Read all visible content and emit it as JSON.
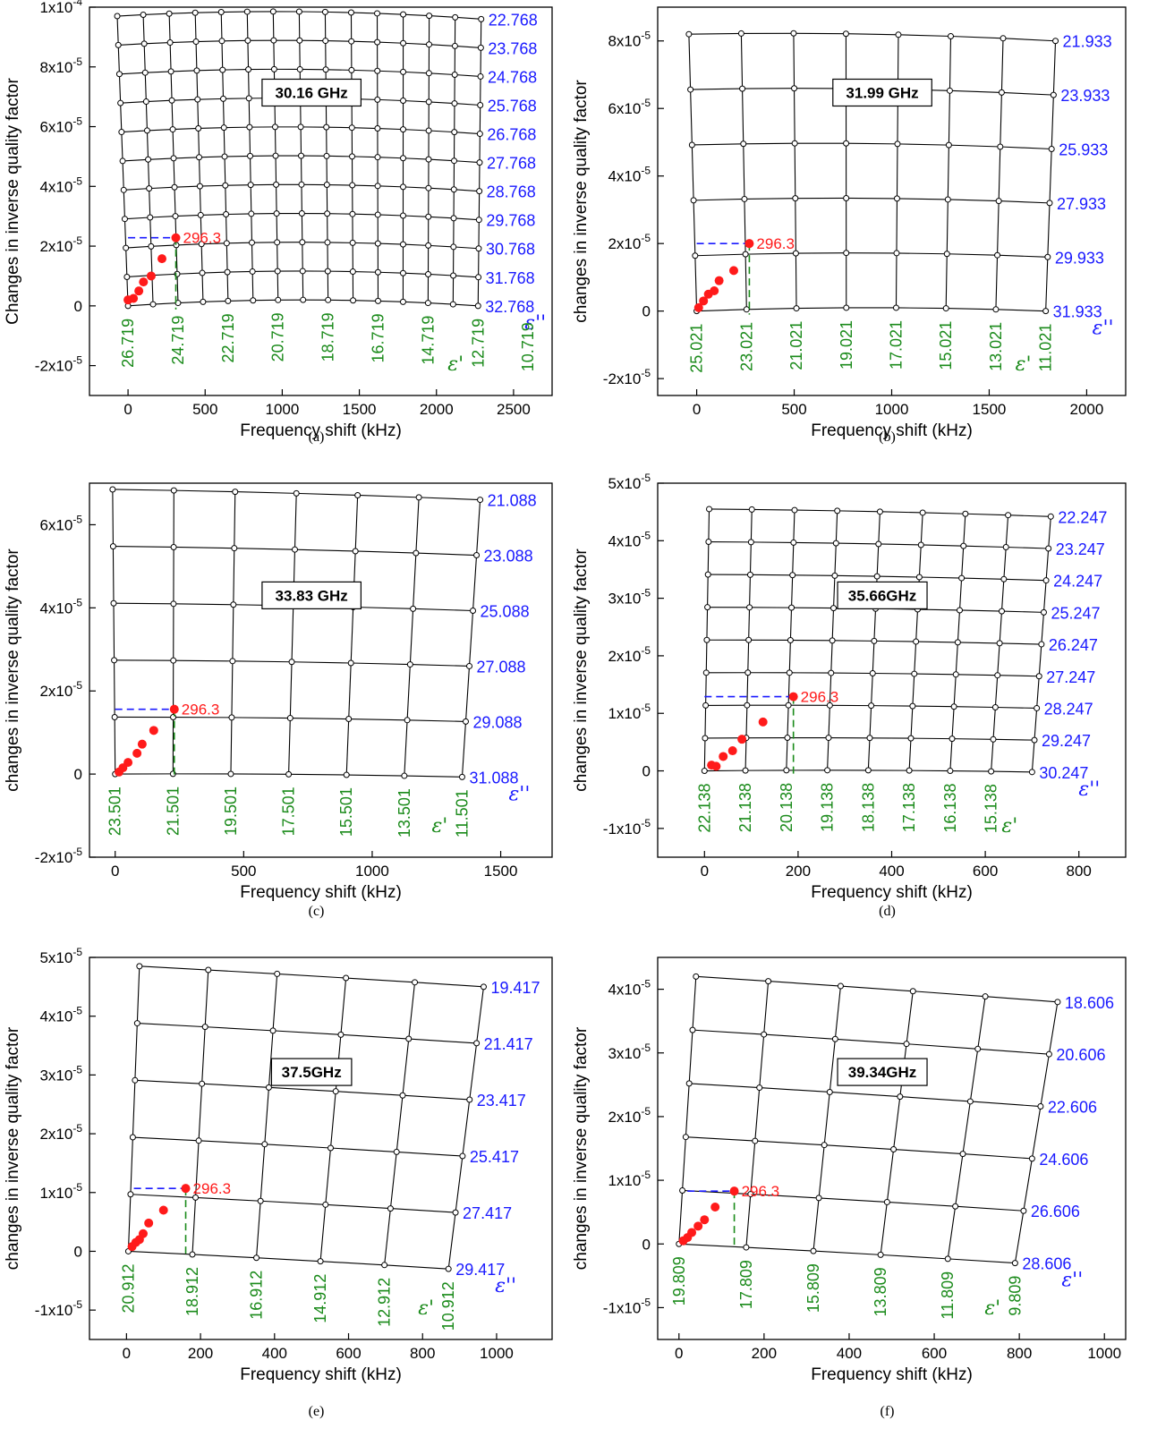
{
  "colors": {
    "grid": "#000000",
    "eps2": "#1a1aff",
    "eps1": "#1a8a1a",
    "measured": "#ff1a1a",
    "blue_dash": "#1a1aff",
    "green_dash": "#1a8a1a"
  },
  "chart_data": [
    {
      "id": "a",
      "caption": "(a)",
      "type": "scatter",
      "frequency": "30.16 GHz",
      "xlabel": "Frequency shift (kHz)",
      "ylabel": "Changes in inverse quality factor",
      "xlim": [
        -250,
        2750
      ],
      "ylim": [
        -3e-05,
        0.0001
      ],
      "xticks": [
        0,
        500,
        1000,
        1500,
        2000,
        2500
      ],
      "xtick_labels": [
        "0",
        "500",
        "1000",
        "1500",
        "2000",
        "2500"
      ],
      "yticks": [
        -2e-05,
        0,
        2e-05,
        4e-05,
        6e-05,
        8e-05,
        0.0001
      ],
      "ytick_labels": [
        [
          "-2x10",
          "-5"
        ],
        [
          "0",
          ""
        ],
        [
          "2x10",
          "-5"
        ],
        [
          "4x10",
          "-5"
        ],
        [
          "6x10",
          "-5"
        ],
        [
          "8x10",
          "-5"
        ],
        [
          "1x10",
          "-4"
        ]
      ],
      "grid_bl": [
        0,
        0
      ],
      "grid_br": [
        2270,
        0
      ],
      "grid_tl": [
        -70,
        9.7e-05
      ],
      "grid_tr": [
        2290,
        9.6e-05
      ],
      "grid_bow": 2e-06,
      "n_cols": 15,
      "n_rows": 11,
      "eps2_labels": [
        "22.768",
        "23.768",
        "24.768",
        "25.768",
        "26.768",
        "27.768",
        "28.768",
        "29.768",
        "30.768",
        "31.768",
        "32.768"
      ],
      "eps1_labels": [
        "26.719",
        "24.719",
        "22.719",
        "20.719",
        "18.719",
        "16.719",
        "14.719",
        "12.719",
        "10.719"
      ],
      "eps1_stride": 2,
      "eps2_symbol": "ε''",
      "eps1_symbol": "ε'",
      "measured": {
        "x": [
          0,
          35,
          70,
          100,
          150,
          220,
          310
        ],
        "y": [
          2e-06,
          2.5e-06,
          5e-06,
          8e-06,
          1e-05,
          1.58e-05,
          2.28e-05
        ]
      },
      "marker_label": "296.3",
      "marker_x": 310,
      "marker_y": 2.28e-05,
      "dash_x0": 0
    },
    {
      "id": "b",
      "caption": "(b)",
      "type": "scatter",
      "frequency": "31.99 GHz",
      "xlabel": "Frequency shift (kHz)",
      "ylabel": "changes in inverse quality factor",
      "xlim": [
        -200,
        2200
      ],
      "ylim": [
        -2.5e-05,
        9e-05
      ],
      "xticks": [
        0,
        500,
        1000,
        1500,
        2000
      ],
      "xtick_labels": [
        "0",
        "500",
        "1000",
        "1500",
        "2000"
      ],
      "yticks": [
        -2e-05,
        0,
        2e-05,
        4e-05,
        6e-05,
        8e-05
      ],
      "ytick_labels": [
        [
          "-2x10",
          "-5"
        ],
        [
          "0",
          ""
        ],
        [
          "2x10",
          "-5"
        ],
        [
          "4x10",
          "-5"
        ],
        [
          "6x10",
          "-5"
        ],
        [
          "8x10",
          "-5"
        ]
      ],
      "grid_bl": [
        0,
        0
      ],
      "grid_br": [
        1790,
        0
      ],
      "grid_tl": [
        -40,
        8.2e-05
      ],
      "grid_tr": [
        1840,
        8e-05
      ],
      "grid_bow": 1e-06,
      "n_cols": 8,
      "n_rows": 6,
      "eps2_labels": [
        "21.933",
        "23.933",
        "25.933",
        "27.933",
        "29.933",
        "31.933"
      ],
      "eps1_labels": [
        "25.021",
        "23.021",
        "21.021",
        "19.021",
        "17.021",
        "15.021",
        "13.021",
        "11.021"
      ],
      "eps1_stride": 1,
      "eps2_symbol": "ε''",
      "eps1_symbol": "ε'",
      "measured": {
        "x": [
          10,
          35,
          60,
          90,
          115,
          190,
          270
        ],
        "y": [
          1e-06,
          3e-06,
          5e-06,
          6e-06,
          9e-06,
          1.2e-05,
          2e-05
        ]
      },
      "marker_label": "296.3",
      "marker_x": 270,
      "marker_y": 2e-05,
      "dash_x0": 0
    },
    {
      "id": "c",
      "caption": "(c)",
      "type": "scatter",
      "frequency": "33.83 GHz",
      "xlabel": "Frequency shift (kHz)",
      "ylabel": "changes in inverse quality factor",
      "xlim": [
        -100,
        1700
      ],
      "ylim": [
        -2e-05,
        7e-05
      ],
      "xticks": [
        0,
        500,
        1000,
        1500
      ],
      "xtick_labels": [
        "0",
        "500",
        "1000",
        "1500"
      ],
      "yticks": [
        -2e-05,
        0,
        2e-05,
        4e-05,
        6e-05
      ],
      "ytick_labels": [
        [
          "-2x10",
          "-5"
        ],
        [
          "0",
          ""
        ],
        [
          "2x10",
          "-5"
        ],
        [
          "4x10",
          "-5"
        ],
        [
          "6x10",
          "-5"
        ]
      ],
      "grid_bl": [
        0,
        0
      ],
      "grid_br": [
        1350,
        -7e-07
      ],
      "grid_tl": [
        -10,
        6.85e-05
      ],
      "grid_tr": [
        1420,
        6.6e-05
      ],
      "grid_bow": 3e-07,
      "n_cols": 7,
      "n_rows": 6,
      "eps2_labels": [
        "21.088",
        "23.088",
        "25.088",
        "27.088",
        "29.088",
        "31.088"
      ],
      "eps1_labels": [
        "23.501",
        "21.501",
        "19.501",
        "17.501",
        "15.501",
        "13.501",
        "11.501"
      ],
      "eps1_stride": 1,
      "eps2_symbol": "ε''",
      "eps1_symbol": "ε'",
      "measured": {
        "x": [
          15,
          30,
          50,
          85,
          105,
          150,
          230
        ],
        "y": [
          5e-07,
          1.5e-06,
          2.8e-06,
          5e-06,
          7.2e-06,
          1.05e-05,
          1.56e-05
        ]
      },
      "marker_label": "296.3",
      "marker_x": 230,
      "marker_y": 1.56e-05,
      "dash_x0": 0
    },
    {
      "id": "d",
      "caption": "(d)",
      "type": "scatter",
      "frequency": "35.66GHz",
      "xlabel": "Frequency shift (kHz)",
      "ylabel": "changes in inverse quality factor",
      "xlim": [
        -100,
        900
      ],
      "ylim": [
        -1.5e-05,
        5e-05
      ],
      "xticks": [
        0,
        200,
        400,
        600,
        800
      ],
      "xtick_labels": [
        "0",
        "200",
        "400",
        "600",
        "800"
      ],
      "yticks": [
        -1e-05,
        0,
        1e-05,
        2e-05,
        3e-05,
        4e-05,
        5e-05
      ],
      "ytick_labels": [
        [
          "-1x10",
          "-5"
        ],
        [
          "0",
          ""
        ],
        [
          "1x10",
          "-5"
        ],
        [
          "2x10",
          "-5"
        ],
        [
          "3x10",
          "-5"
        ],
        [
          "4x10",
          "-5"
        ],
        [
          "5x10",
          "-5"
        ]
      ],
      "grid_bl": [
        0,
        0
      ],
      "grid_br": [
        700,
        -2e-07
      ],
      "grid_tl": [
        10,
        4.55e-05
      ],
      "grid_tr": [
        740,
        4.42e-05
      ],
      "grid_bow": 2e-07,
      "n_cols": 9,
      "n_rows": 9,
      "eps2_labels": [
        "22.247",
        "23.247",
        "24.247",
        "25.247",
        "26.247",
        "27.247",
        "28.247",
        "29.247",
        "30.247"
      ],
      "eps1_labels": [
        "22.138",
        "21.138",
        "20.138",
        "19.138",
        "18.138",
        "17.138",
        "16.138",
        "15.138"
      ],
      "eps1_stride": 1,
      "eps2_symbol": "ε''",
      "eps1_symbol": "ε'",
      "measured": {
        "x": [
          15,
          25,
          40,
          60,
          80,
          125,
          190
        ],
        "y": [
          1e-06,
          8e-07,
          2.5e-06,
          3.5e-06,
          5.5e-06,
          8.5e-06,
          1.29e-05
        ]
      },
      "marker_label": "296.3",
      "marker_x": 190,
      "marker_y": 1.29e-05,
      "dash_x0": 0
    },
    {
      "id": "e",
      "caption": "(e)",
      "type": "scatter",
      "frequency": "37.5GHz",
      "xlabel": "Frequency shift (kHz)",
      "ylabel": "changes in inverse quality factor",
      "xlim": [
        -100,
        1150
      ],
      "ylim": [
        -1.5e-05,
        5e-05
      ],
      "xticks": [
        0,
        200,
        400,
        600,
        800,
        1000
      ],
      "xtick_labels": [
        "0",
        "200",
        "400",
        "600",
        "800",
        "1000"
      ],
      "yticks": [
        -1e-05,
        0,
        1e-05,
        2e-05,
        3e-05,
        4e-05,
        5e-05
      ],
      "ytick_labels": [
        [
          "-1x10",
          "-5"
        ],
        [
          "0",
          ""
        ],
        [
          "1x10",
          "-5"
        ],
        [
          "2x10",
          "-5"
        ],
        [
          "3x10",
          "-5"
        ],
        [
          "4x10",
          "-5"
        ],
        [
          "5x10",
          "-5"
        ]
      ],
      "grid_bl": [
        5,
        0
      ],
      "grid_br": [
        870,
        -3e-06
      ],
      "grid_tl": [
        35,
        4.85e-05
      ],
      "grid_tr": [
        965,
        4.5e-05
      ],
      "grid_bow": 1e-07,
      "n_cols": 6,
      "n_rows": 6,
      "eps2_labels": [
        "19.417",
        "21.417",
        "23.417",
        "25.417",
        "27.417",
        "29.417"
      ],
      "eps1_labels": [
        "20.912",
        "18.912",
        "16.912",
        "14.912",
        "12.912",
        "10.912"
      ],
      "eps1_stride": 1,
      "eps2_symbol": "ε''",
      "eps1_symbol": "ε'",
      "measured": {
        "x": [
          15,
          25,
          35,
          45,
          60,
          100,
          160
        ],
        "y": [
          8e-07,
          1.5e-06,
          2e-06,
          3e-06,
          4.8e-06,
          7e-06,
          1.07e-05
        ]
      },
      "marker_label": "296.3",
      "marker_x": 160,
      "marker_y": 1.07e-05,
      "dash_x0": 20
    },
    {
      "id": "f",
      "caption": "(f)",
      "type": "scatter",
      "frequency": "39.34GHz",
      "xlabel": "Frequency shift (kHz)",
      "ylabel": "changes in inverse quality factor",
      "xlim": [
        -50,
        1050
      ],
      "ylim": [
        -1.5e-05,
        4.5e-05
      ],
      "xticks": [
        0,
        200,
        400,
        600,
        800,
        1000
      ],
      "xtick_labels": [
        "0",
        "200",
        "400",
        "600",
        "800",
        "1000"
      ],
      "yticks": [
        -1e-05,
        0,
        1e-05,
        2e-05,
        3e-05,
        4e-05
      ],
      "ytick_labels": [
        [
          "-1x10",
          "-5"
        ],
        [
          "0",
          ""
        ],
        [
          "1x10",
          "-5"
        ],
        [
          "2x10",
          "-5"
        ],
        [
          "3x10",
          "-5"
        ],
        [
          "4x10",
          "-5"
        ]
      ],
      "grid_bl": [
        0,
        0
      ],
      "grid_br": [
        790,
        -3e-06
      ],
      "grid_tl": [
        40,
        4.2e-05
      ],
      "grid_tr": [
        890,
        3.8e-05
      ],
      "grid_bow": 1e-07,
      "n_cols": 6,
      "n_rows": 6,
      "eps2_labels": [
        "18.606",
        "20.606",
        "22.606",
        "24.606",
        "26.606",
        "28.606"
      ],
      "eps1_labels": [
        "19.809",
        "17.809",
        "15.809",
        "13.809",
        "11.809",
        "9.809"
      ],
      "eps1_stride": 1,
      "eps2_symbol": "ε''",
      "eps1_symbol": "ε'",
      "measured": {
        "x": [
          10,
          20,
          30,
          45,
          60,
          85,
          130
        ],
        "y": [
          5e-07,
          1e-06,
          1.8e-06,
          2.8e-06,
          3.8e-06,
          5.8e-06,
          8.3e-06
        ]
      },
      "marker_label": "296.3",
      "marker_x": 130,
      "marker_y": 8.3e-06,
      "dash_x0": 20
    }
  ]
}
